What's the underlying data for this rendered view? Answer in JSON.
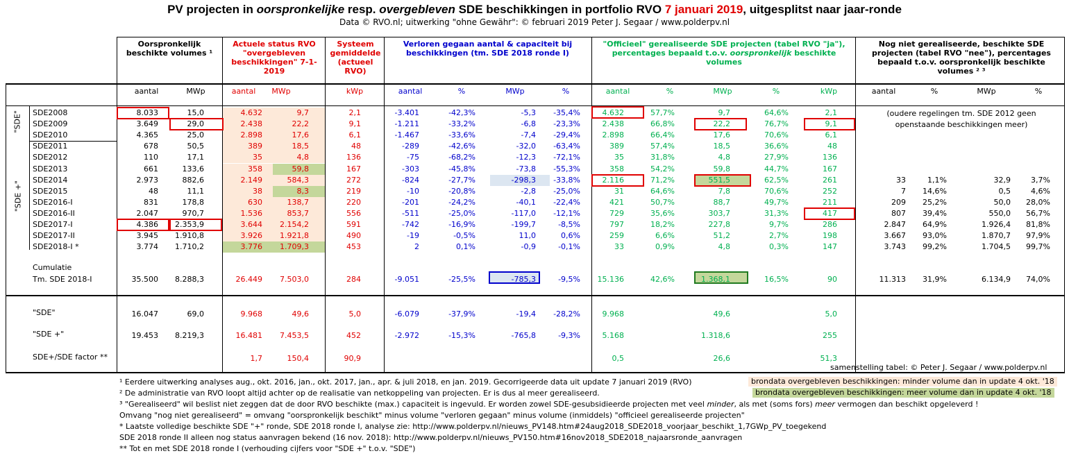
{
  "title": {
    "part1": "PV projecten in ",
    "part2": "oorspronkelijke",
    "part3": " resp. ",
    "part4": "overgebleven",
    "part5": " SDE beschikkingen in portfolio RVO ",
    "part6": "7 januari 2019",
    "part7": ", uitgesplitst naar jaar-ronde"
  },
  "subtitle": "Data © RVO.nl; uitwerking \"ohne Gewähr\": © februari 2019 Peter J. Segaar / www.polderpv.nl",
  "headers": {
    "orig": "Oorspronkelijk beschikte volumes ¹",
    "actueel": "Actuele status RVO \"overgebleven beschikkingen\" 7-1-2019",
    "systeem": "Systeem gemiddelde (actueel RVO)",
    "verloren": "Verloren gegaan aantal & capaciteit bij beschikkingen (tm. SDE 2018 ronde I)",
    "officieel_a": "\"Officieel\" gerealiseerde SDE projecten (tabel RVO \"ja\"), percentages bepaald t.o.v. ",
    "officieel_b": "oorspronkelijk",
    "officieel_c": " beschikte volumes",
    "niet": "Nog niet gerealiseerde, beschikte SDE projecten (tabel RVO \"nee\"), percentages bepaald t.o.v. oorspronkelijk beschikte volumes ² ³"
  },
  "subheaders": [
    "aantal",
    "MWp",
    "aantal",
    "MWp",
    "kWp",
    "aantal",
    "%",
    "MWp",
    "%",
    "aantal",
    "%",
    "MWp",
    "%",
    "kWp",
    "aantal",
    "%",
    "MWp",
    "%"
  ],
  "group_labels": {
    "sde": "\"SDE\"",
    "sdeplus": "\"SDE +\""
  },
  "rows": [
    {
      "label": "SDE2008",
      "cells": [
        "8.033",
        "15,0",
        "4.632",
        "9,7",
        "2,1",
        "-3.401",
        "-42,3%",
        "-5,3",
        "-35,4%",
        "4.632",
        "57,7%",
        "9,7",
        "64,6%",
        "2,1",
        "",
        "",
        "",
        ""
      ]
    },
    {
      "label": "SDE2009",
      "cells": [
        "3.649",
        "29,0",
        "2.438",
        "22,2",
        "9,1",
        "-1.211",
        "-33,2%",
        "-6,8",
        "-23,3%",
        "2.438",
        "66,8%",
        "22,2",
        "76,7%",
        "9,1",
        "",
        "",
        "",
        ""
      ]
    },
    {
      "label": "SDE2010",
      "cells": [
        "4.365",
        "25,0",
        "2.898",
        "17,6",
        "6,1",
        "-1.467",
        "-33,6%",
        "-7,4",
        "-29,4%",
        "2.898",
        "66,4%",
        "17,6",
        "70,6%",
        "6,1",
        "",
        "",
        "",
        ""
      ]
    },
    {
      "label": "SDE2011",
      "cells": [
        "678",
        "50,5",
        "389",
        "18,5",
        "48",
        "-289",
        "-42,6%",
        "-32,0",
        "-63,4%",
        "389",
        "57,4%",
        "18,5",
        "36,6%",
        "48",
        "",
        "",
        "",
        ""
      ]
    },
    {
      "label": "SDE2012",
      "cells": [
        "110",
        "17,1",
        "35",
        "4,8",
        "136",
        "-75",
        "-68,2%",
        "-12,3",
        "-72,1%",
        "35",
        "31,8%",
        "4,8",
        "27,9%",
        "136",
        "",
        "",
        "",
        ""
      ]
    },
    {
      "label": "SDE2013",
      "cells": [
        "661",
        "133,6",
        "358",
        "59,8",
        "167",
        "-303",
        "-45,8%",
        "-73,8",
        "-55,3%",
        "358",
        "54,2%",
        "59,8",
        "44,7%",
        "167",
        "",
        "",
        "",
        ""
      ]
    },
    {
      "label": "SDE2014",
      "cells": [
        "2.973",
        "882,6",
        "2.149",
        "584,3",
        "272",
        "-824",
        "-27,7%",
        "-298,3",
        "-33,8%",
        "2.116",
        "71,2%",
        "551,5",
        "62,5%",
        "261",
        "33",
        "1,1%",
        "32,9",
        "3,7%"
      ]
    },
    {
      "label": "SDE2015",
      "cells": [
        "48",
        "11,1",
        "38",
        "8,3",
        "219",
        "-10",
        "-20,8%",
        "-2,8",
        "-25,0%",
        "31",
        "64,6%",
        "7,8",
        "70,6%",
        "252",
        "7",
        "14,6%",
        "0,5",
        "4,6%"
      ]
    },
    {
      "label": "SDE2016-I",
      "cells": [
        "831",
        "178,8",
        "630",
        "138,7",
        "220",
        "-201",
        "-24,2%",
        "-40,1",
        "-22,4%",
        "421",
        "50,7%",
        "88,7",
        "49,7%",
        "211",
        "209",
        "25,2%",
        "50,0",
        "28,0%"
      ]
    },
    {
      "label": "SDE2016-II",
      "cells": [
        "2.047",
        "970,7",
        "1.536",
        "853,7",
        "556",
        "-511",
        "-25,0%",
        "-117,0",
        "-12,1%",
        "729",
        "35,6%",
        "303,7",
        "31,3%",
        "417",
        "807",
        "39,4%",
        "550,0",
        "56,7%"
      ]
    },
    {
      "label": "SDE2017-I",
      "cells": [
        "4.386",
        "2.353,9",
        "3.644",
        "2.154,2",
        "591",
        "-742",
        "-16,9%",
        "-199,7",
        "-8,5%",
        "797",
        "18,2%",
        "227,8",
        "9,7%",
        "286",
        "2.847",
        "64,9%",
        "1.926,4",
        "81,8%"
      ]
    },
    {
      "label": "SDE2017-II",
      "cells": [
        "3.945",
        "1.910,8",
        "3.926",
        "1.921,8",
        "490",
        "-19",
        "-0,5%",
        "11,0",
        "0,6%",
        "259",
        "6,6%",
        "51,2",
        "2,7%",
        "198",
        "3.667",
        "93,0%",
        "1.870,7",
        "97,9%"
      ]
    },
    {
      "label": "SDE2018-I *",
      "cells": [
        "3.774",
        "1.710,2",
        "3.776",
        "1.709,3",
        "453",
        "2",
        "0,1%",
        "-0,9",
        "-0,1%",
        "33",
        "0,9%",
        "4,8",
        "0,3%",
        "147",
        "3.743",
        "99,2%",
        "1.704,5",
        "99,7%"
      ]
    }
  ],
  "no_outstanding_note": "(oudere regelingen tm. SDE 2012 geen openstaande beschikkingen meer)",
  "cumulatie": {
    "label1": "Cumulatie",
    "label2": "Tm. SDE 2018-I",
    "cells": [
      "35.500",
      "8.288,3",
      "26.449",
      "7.503,0",
      "284",
      "-9.051",
      "-25,5%",
      "-785,3",
      "-9,5%",
      "15.136",
      "42,6%",
      "1.368,1",
      "16,5%",
      "90",
      "11.313",
      "31,9%",
      "6.134,9",
      "74,0%"
    ]
  },
  "summary": [
    {
      "label": "\"SDE\"",
      "cells": [
        "16.047",
        "69,0",
        "9.968",
        "49,6",
        "5,0",
        "-6.079",
        "-37,9%",
        "-19,4",
        "-28,2%",
        "9.968",
        "",
        "49,6",
        "",
        "5,0",
        "",
        "",
        "",
        ""
      ]
    },
    {
      "label": "\"SDE +\"",
      "cells": [
        "19.453",
        "8.219,3",
        "16.481",
        "7.453,5",
        "452",
        "-2.972",
        "-15,3%",
        "-765,8",
        "-9,3%",
        "5.168",
        "",
        "1.318,6",
        "",
        "255",
        "",
        "",
        "",
        ""
      ]
    },
    {
      "label": "SDE+/SDE factor **",
      "cells": [
        "",
        "",
        "1,7",
        "150,4",
        "90,9",
        "",
        "",
        "",
        "",
        "0,5",
        "",
        "26,6",
        "",
        "51,3",
        "",
        "",
        "",
        ""
      ]
    }
  ],
  "credit": "samenstelling tabel: © Peter J. Segaar / www.polderpv.nl",
  "footnotes": [
    "¹ Eerdere uitwerking analyses aug., okt. 2016, jan., okt.  2017, jan., apr. & juli 2018, en jan. 2019. Gecorrigeerde data uit update 7 januari 2019 (RVO)",
    "² De administratie van RVO loopt altijd achter op de realisatie van netkoppeling van projecten. Er is dus al meer gerealiseerd.",
    "³ \"Gerealiseerd\" wil beslist niet zeggen dat de door RVO beschikte (max.) capaciteit is ingevuld. Er worden zowel SDE-gesubsidieerde projecten met veel minder, als met (soms fors) meer vermogen dan beschikt opgeleverd !",
    "Omvang \"nog niet gerealiseerd\" = omvang \"oorspronkelijk beschikt\" minus volume \"verloren gegaan\" minus volume (inmiddels) \"officieel gerealiseerde projecten\"",
    "* Laatste volledige beschikte SDE \"+\" ronde, SDE 2018 ronde I, analyse zie: http://www.polderpv.nl/nieuws_PV148.htm#24aug2018_SDE2018_voorjaar_beschikt_1,7GWp_PV_toegekend",
    "SDE 2018 ronde II alleen nog status aanvragen bekend (16 nov. 2018): http://www.polderpv.nl/nieuws_PV150.htm#16nov2018_SDE2018_najaarsronde_aanvragen",
    "** Tot en met SDE 2018 ronde I (verhouding cijfers voor \"SDE +\" t.o.v. \"SDE\")"
  ],
  "legend": {
    "less": "brondata overgebleven beschikkingen: minder volume dan in update 4 okt. '18",
    "more": "brondata overgebleven beschikkingen: meer volume dan in update 4 okt. '18"
  },
  "colors": {
    "red": "#e00000",
    "blue": "#0000cc",
    "green": "#00b050",
    "peach": "#fde9d9",
    "olive": "#c4d79b",
    "lightblue": "#dce6f1"
  }
}
